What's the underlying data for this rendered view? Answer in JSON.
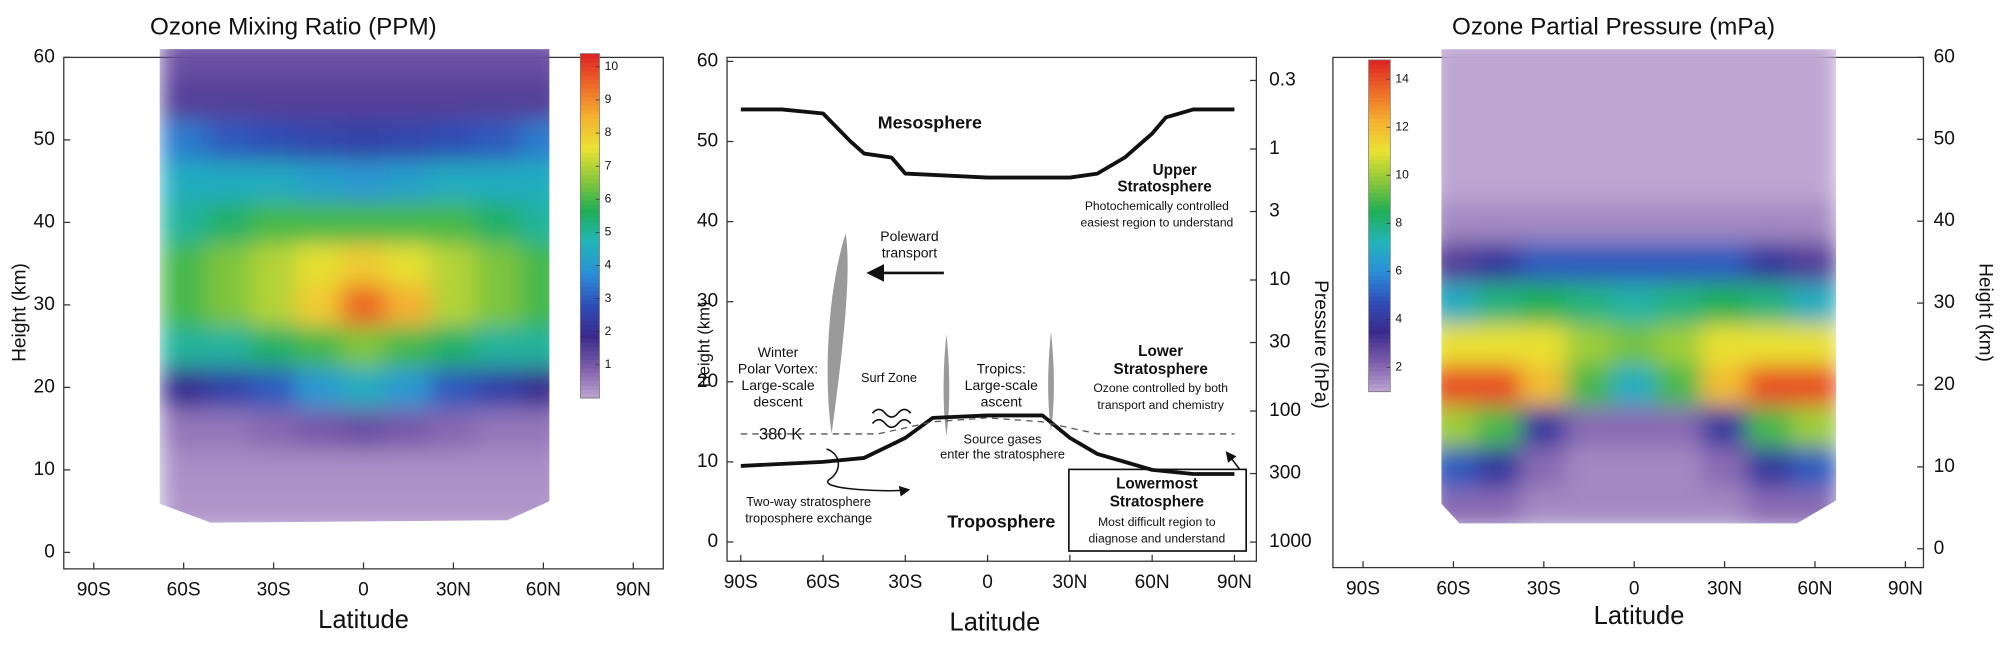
{
  "chart_data": [
    {
      "type": "heatmap",
      "title": "Ozone Mixing Ratio (PPM)",
      "xlabel": "Latitude",
      "ylabel": "Height (km)",
      "y_axis_position": "left",
      "xlim": [
        -100,
        100
      ],
      "ylim": [
        -2,
        60
      ],
      "xticks": [
        {
          "value": -90,
          "label": "90S"
        },
        {
          "value": -60,
          "label": "60S"
        },
        {
          "value": -30,
          "label": "30S"
        },
        0,
        {
          "value": 30,
          "label": "30N"
        },
        {
          "value": 60,
          "label": "60N"
        },
        {
          "value": 90,
          "label": "90N"
        }
      ],
      "yticks": [
        0,
        10,
        20,
        30,
        40,
        50,
        60
      ],
      "x": [
        -60,
        -45,
        -30,
        -15,
        0,
        15,
        30,
        45,
        60
      ],
      "y": [
        5,
        10,
        15,
        20,
        25,
        30,
        35,
        40,
        45,
        50,
        55,
        60
      ],
      "values": [
        [
          0.2,
          0.2,
          0.2,
          0.2,
          0.2,
          0.2,
          0.2,
          0.2,
          0.2
        ],
        [
          0.3,
          0.3,
          0.3,
          0.3,
          0.3,
          0.3,
          0.3,
          0.3,
          0.3
        ],
        [
          0.6,
          0.6,
          0.8,
          1,
          1.2,
          1,
          0.8,
          0.6,
          0.6
        ],
        [
          2,
          2.5,
          3,
          4,
          4.5,
          4,
          3,
          2.5,
          2
        ],
        [
          5,
          5,
          5.5,
          6,
          6.5,
          6,
          5.5,
          5,
          5
        ],
        [
          6,
          6.5,
          7,
          8,
          9.5,
          8.5,
          7,
          6.5,
          6
        ],
        [
          6,
          6.5,
          7,
          7.5,
          8,
          7.5,
          7,
          6.5,
          6
        ],
        [
          5,
          5.5,
          6,
          6,
          6,
          6,
          6,
          5.5,
          5
        ],
        [
          4.5,
          4.5,
          4.5,
          4.2,
          4,
          4.2,
          4.5,
          4.5,
          4.5
        ],
        [
          3.5,
          3,
          2.8,
          2.6,
          2.5,
          2.6,
          2.8,
          3,
          3.5
        ],
        [
          1.5,
          1.5,
          1.5,
          1.5,
          1.5,
          1.5,
          1.5,
          1.5,
          1.5
        ],
        [
          1.2,
          1.2,
          1.2,
          1.2,
          1.2,
          1.2,
          1.2,
          1.2,
          1.2
        ]
      ],
      "clim": [
        0,
        10.4
      ],
      "colorbar_ticks": [
        1,
        2,
        3,
        4,
        5,
        6,
        7,
        8,
        9,
        10
      ],
      "colorscale": [
        "#bda6d2",
        "#7b5cab",
        "#3a2a8c",
        "#2f4fb8",
        "#2b8fd8",
        "#22b5b8",
        "#1faf55",
        "#8cc83a",
        "#ece232",
        "#f4b030",
        "#ee6a28",
        "#dd2222"
      ]
    },
    {
      "type": "schematic",
      "xlabel": "Latitude",
      "ylabel": "Height (km)",
      "y2label": "Pressure (hPa)",
      "xlim": [
        -95,
        98
      ],
      "ylim": [
        -2.4,
        60.5
      ],
      "y2lim": [
        1400,
        0.2
      ],
      "y2log": true,
      "xticks": [
        {
          "value": -90,
          "label": "90S"
        },
        {
          "value": -60,
          "label": "60S"
        },
        {
          "value": -30,
          "label": "30S"
        },
        0,
        {
          "value": 30,
          "label": "30N"
        },
        {
          "value": 60,
          "label": "60N"
        },
        {
          "value": 90,
          "label": "90N"
        }
      ],
      "yticks": [
        0,
        10,
        20,
        30,
        40,
        50,
        60
      ],
      "y2ticks": [
        0.3,
        1,
        3,
        10,
        30,
        100,
        300,
        1000
      ],
      "lines": [
        {
          "x": [
            -90,
            -75,
            -60,
            -50,
            -45,
            -35,
            -30,
            0,
            30,
            40,
            50,
            60,
            65,
            75,
            90
          ],
          "values": [
            54,
            54,
            53.5,
            50,
            48.5,
            48,
            46,
            45.5,
            45.5,
            46,
            48,
            51,
            53,
            54,
            54
          ],
          "dash": false
        },
        {
          "x": [
            -90,
            -60,
            -45,
            -30,
            -20,
            0,
            20,
            30,
            40,
            50,
            60,
            75,
            90
          ],
          "values": [
            9.5,
            10,
            10.5,
            13,
            15.5,
            15.8,
            15.8,
            13,
            11,
            10,
            9,
            8.5,
            8.5
          ],
          "dash": false
        },
        {
          "x": [
            -90,
            -40,
            -20,
            0,
            20,
            40,
            90
          ],
          "values": [
            13.5,
            13.5,
            15,
            15.5,
            15,
            13.5,
            13.5
          ],
          "dash": true
        }
      ],
      "annotations": [
        "Mesosphere",
        "Upper",
        "Stratosphere",
        "Photochemically controlled",
        "easiest region to understand",
        "Poleward",
        "transport",
        "Winter",
        "Polar Vortex:",
        "Large-scale",
        "descent",
        "Surf Zone",
        "Tropics:",
        "Large-scale",
        "ascent",
        "Lower",
        "Stratosphere",
        "Ozone controlled by both",
        "transport and chemistry",
        "380 K",
        "Source gases",
        "enter the stratosphere",
        "Two-way stratosphere",
        "troposphere exchange",
        "Troposphere",
        "Lowermost",
        "Stratosphere",
        "Most difficult region to",
        "diagnose and understand"
      ]
    },
    {
      "type": "heatmap",
      "title": "Ozone Partial Pressure (mPa)",
      "xlabel": "Latitude",
      "ylabel": "Height (km)",
      "y_axis_position": "right",
      "xlim": [
        -100,
        96
      ],
      "ylim": [
        -2.3,
        60
      ],
      "xticks": [
        {
          "value": -90,
          "label": "90S"
        },
        {
          "value": -60,
          "label": "60S"
        },
        {
          "value": -30,
          "label": "30S"
        },
        0,
        {
          "value": 30,
          "label": "30N"
        },
        {
          "value": 60,
          "label": "60N"
        },
        {
          "value": 90,
          "label": "90N"
        }
      ],
      "yticks": [
        0,
        10,
        20,
        30,
        40,
        50,
        60
      ],
      "x": [
        -60,
        -45,
        -30,
        -15,
        0,
        15,
        30,
        45,
        60
      ],
      "y": [
        5,
        10,
        15,
        20,
        25,
        30,
        35,
        40,
        45,
        50,
        55,
        60
      ],
      "values": [
        [
          2,
          2,
          1.5,
          1.5,
          1.5,
          1.5,
          1.5,
          2,
          2
        ],
        [
          5,
          4,
          2,
          1.5,
          1.5,
          1.5,
          2,
          4,
          5
        ],
        [
          10,
          9,
          4,
          2,
          2,
          2,
          4,
          9,
          10
        ],
        [
          14,
          14,
          12,
          9,
          7,
          9,
          12,
          14,
          14
        ],
        [
          11,
          11,
          11,
          10,
          9.5,
          10,
          11,
          11,
          11
        ],
        [
          7,
          8,
          8.5,
          8,
          7.5,
          8,
          8.5,
          8,
          7
        ],
        [
          3,
          4,
          5,
          5,
          5,
          5,
          5,
          4,
          3
        ],
        [
          1.5,
          1.5,
          1.5,
          1.5,
          1.5,
          1.5,
          1.5,
          1.5,
          1.5
        ],
        [
          1,
          1,
          1,
          1,
          1,
          1,
          1,
          1,
          1
        ],
        [
          0.8,
          0.8,
          0.8,
          0.8,
          0.8,
          0.8,
          0.8,
          0.8,
          0.8
        ],
        [
          0.8,
          0.8,
          0.8,
          0.8,
          0.8,
          0.8,
          0.8,
          0.8,
          0.8
        ],
        [
          0.8,
          0.8,
          0.8,
          0.8,
          0.8,
          0.8,
          0.8,
          0.8,
          0.8
        ]
      ],
      "clim": [
        1,
        14.8
      ],
      "colorbar_ticks": [
        2,
        4,
        6,
        8,
        10,
        12,
        14
      ],
      "colorscale": [
        "#bda6d2",
        "#7b5cab",
        "#3a2a8c",
        "#2f4fb8",
        "#2b8fd8",
        "#22b5b8",
        "#1faf55",
        "#8cc83a",
        "#ece232",
        "#f4b030",
        "#ee6a28",
        "#dd2222"
      ]
    }
  ]
}
